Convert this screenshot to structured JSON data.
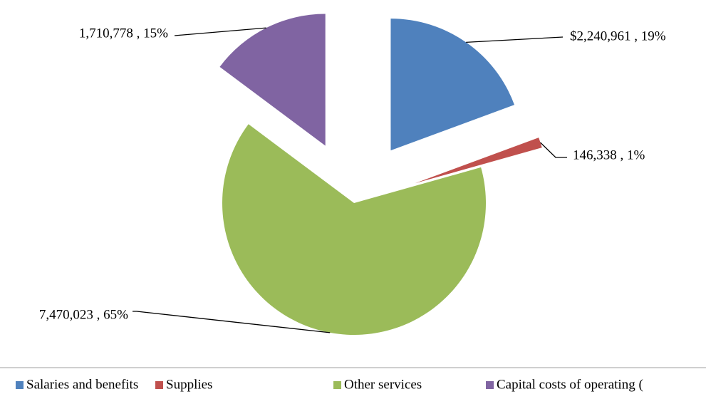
{
  "chart_data": {
    "type": "pie",
    "categories": [
      "Salaries and benefits",
      "Supplies",
      "Other services",
      "Capital costs of operating ("
    ],
    "values": [
      2240961,
      146338,
      7470023,
      1710778
    ],
    "value_labels": [
      "$2,240,961 , 19%",
      "146,338 , 1%",
      "7,470,023 , 65%",
      "1,710,778 , 15%"
    ],
    "colors": [
      "#4f81bd",
      "#c0504d",
      "#9bbb59",
      "#8064a2"
    ],
    "legend": "bottom"
  }
}
